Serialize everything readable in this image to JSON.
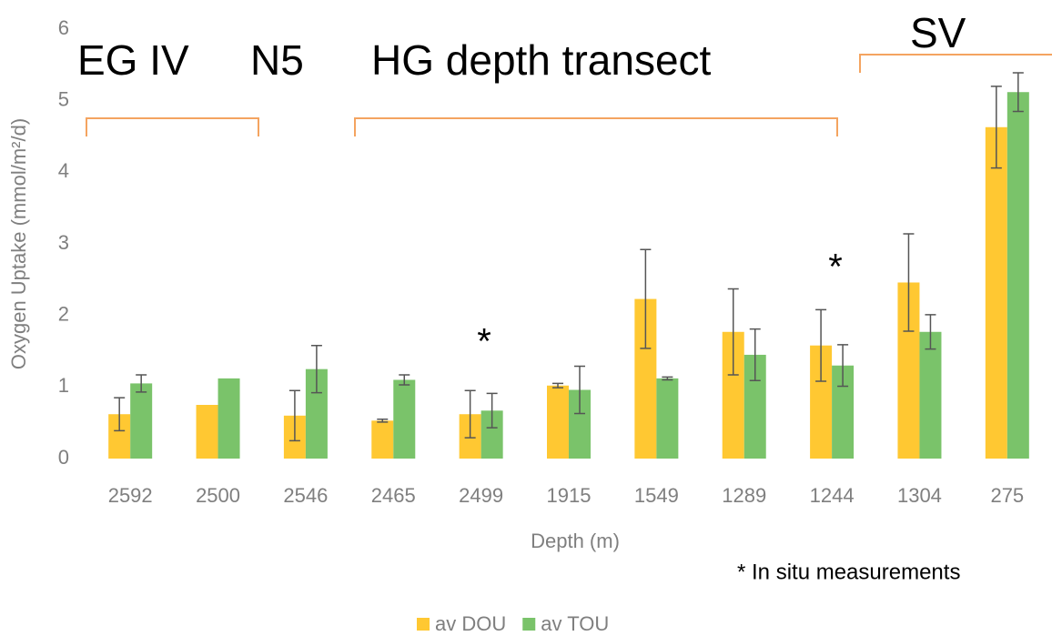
{
  "chart_data": {
    "type": "bar",
    "x_label": "Depth (m)",
    "y_label": "Oxygen Uptake (mmol/m²/d)",
    "categories": [
      "2592",
      "2500",
      "2546",
      "2465",
      "2499",
      "1915",
      "1549",
      "1289",
      "1244",
      "1304",
      "275"
    ],
    "series": [
      {
        "name": "av DOU",
        "color": "#ffc832",
        "values": [
          0.62,
          0.75,
          0.6,
          0.53,
          0.62,
          1.02,
          2.23,
          1.77,
          1.58,
          2.46,
          4.63
        ],
        "errors": [
          0.23,
          0,
          0.35,
          0.02,
          0.33,
          0.03,
          0.69,
          0.6,
          0.5,
          0.68,
          0.57
        ]
      },
      {
        "name": "av TOU",
        "color": "#7ac36a",
        "values": [
          1.05,
          1.12,
          1.25,
          1.1,
          0.67,
          0.96,
          1.12,
          1.45,
          1.3,
          1.77,
          5.12
        ],
        "errors": [
          0.12,
          0,
          0.33,
          0.07,
          0.24,
          0.33,
          0.02,
          0.36,
          0.29,
          0.24,
          0.27
        ]
      }
    ],
    "ylim": [
      0,
      6
    ],
    "yticks": [
      0,
      1,
      2,
      3,
      4,
      5,
      6
    ],
    "grid": false,
    "legend": "bottom",
    "annotations": [
      "EG IV",
      "N5",
      "HG depth transect",
      "SV",
      "*",
      "*",
      "* In situ measurements"
    ]
  }
}
